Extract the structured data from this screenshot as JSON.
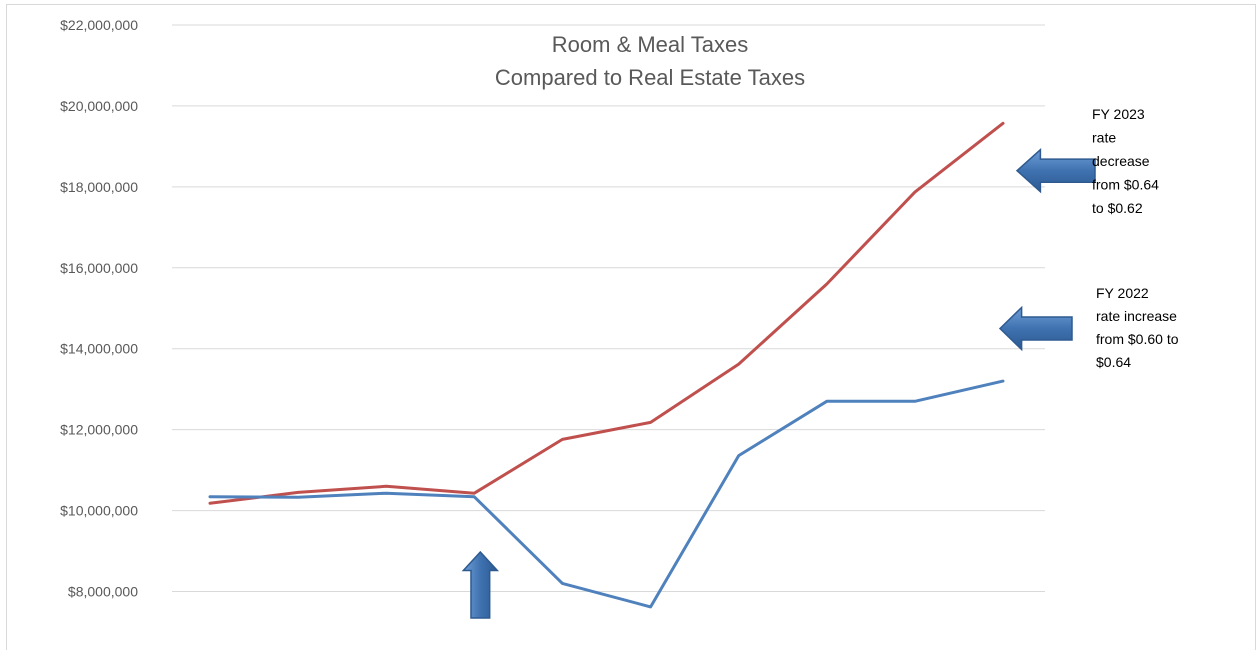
{
  "chart_data": {
    "type": "line",
    "title": [
      "Room & Meal Taxes",
      "Compared to Real Estate Taxes"
    ],
    "xlabel": "",
    "ylabel": "",
    "ylim": [
      7000000,
      22000000
    ],
    "yticks": [
      8000000,
      10000000,
      12000000,
      14000000,
      16000000,
      18000000,
      20000000,
      22000000
    ],
    "ytick_labels": [
      "$8,000,000",
      "$10,000,000",
      "$12,000,000",
      "$14,000,000",
      "$16,000,000",
      "$18,000,000",
      "$20,000,000",
      "$22,000,000"
    ],
    "grid": true,
    "legend": "none",
    "x": [
      1,
      2,
      3,
      4,
      5,
      6,
      7,
      8,
      9,
      10
    ],
    "series": [
      {
        "color": "#c0504d",
        "values": [
          10180000,
          10450000,
          10600000,
          10430000,
          11760000,
          12180000,
          13620000,
          15600000,
          17870000,
          19570000
        ]
      },
      {
        "color": "#4f81bd",
        "values": [
          10340000,
          10330000,
          10430000,
          10340000,
          8200000,
          7620000,
          11360000,
          12700000,
          12700000,
          13200000
        ]
      }
    ],
    "annotations": [
      {
        "lines": [
          "FY 2023",
          "rate",
          "decrease",
          "from $0.64",
          "to $0.62"
        ],
        "arrow": "left",
        "arrow_level": 18400000
      },
      {
        "lines": [
          "FY 2022",
          "rate increase",
          "from $0.60 to",
          "$0.64"
        ],
        "arrow": "left",
        "arrow_level": 14500000
      },
      {
        "lines": [],
        "arrow": "up",
        "at_x": 4
      }
    ],
    "colors": {
      "grid": "#d9d9d9",
      "arrow_fill": "#4a7ebb",
      "arrow_stroke": "#2e5a8f"
    }
  }
}
